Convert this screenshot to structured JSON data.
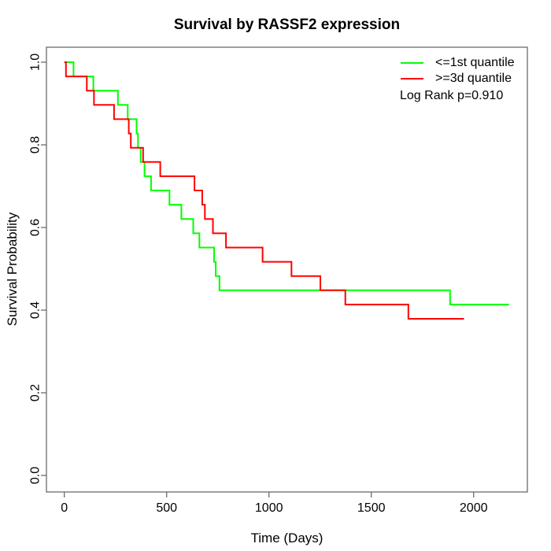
{
  "title": "Survival by RASSF2 expression",
  "chart_data": {
    "type": "line",
    "subtype": "kaplan-meier-step",
    "title": "Survival by RASSF2 expression",
    "xlabel": "Time (Days)",
    "ylabel": "Survival Probability",
    "xlim": [
      0,
      2200
    ],
    "ylim": [
      0.0,
      1.0
    ],
    "x_ticks": [
      0,
      500,
      1000,
      1500,
      2000
    ],
    "y_ticks": [
      "0.0",
      "0.2",
      "0.4",
      "0.6",
      "0.8",
      "1.0"
    ],
    "grid": false,
    "legend_position": "top-right",
    "annotation": "Log Rank p=0.910",
    "axis_color": "#6b6b6b",
    "series": [
      {
        "name": "<=1st quantile",
        "color": "#00ff00",
        "end_time": 2173,
        "steps": [
          [
            0,
            1.0
          ],
          [
            45,
            0.9655
          ],
          [
            142,
            0.931
          ],
          [
            262,
            0.8965
          ],
          [
            310,
            0.862
          ],
          [
            353,
            0.8275
          ],
          [
            360,
            0.793
          ],
          [
            373,
            0.7585
          ],
          [
            392,
            0.724
          ],
          [
            424,
            0.6895
          ],
          [
            514,
            0.655
          ],
          [
            572,
            0.6205
          ],
          [
            630,
            0.586
          ],
          [
            660,
            0.5515
          ],
          [
            732,
            0.517
          ],
          [
            740,
            0.4825
          ],
          [
            758,
            0.448
          ],
          [
            1885,
            0.4135
          ]
        ]
      },
      {
        "name": ">=3d quantile",
        "color": "#ff0000",
        "end_time": 1953,
        "steps": [
          [
            0,
            1.0
          ],
          [
            8,
            0.9655
          ],
          [
            110,
            0.931
          ],
          [
            145,
            0.8965
          ],
          [
            243,
            0.862
          ],
          [
            315,
            0.8275
          ],
          [
            325,
            0.793
          ],
          [
            385,
            0.7585
          ],
          [
            469,
            0.724
          ],
          [
            636,
            0.6895
          ],
          [
            674,
            0.655
          ],
          [
            687,
            0.6205
          ],
          [
            726,
            0.586
          ],
          [
            790,
            0.5515
          ],
          [
            969,
            0.517
          ],
          [
            1110,
            0.4825
          ],
          [
            1251,
            0.448
          ],
          [
            1373,
            0.4135
          ],
          [
            1681,
            0.379
          ]
        ]
      }
    ]
  }
}
